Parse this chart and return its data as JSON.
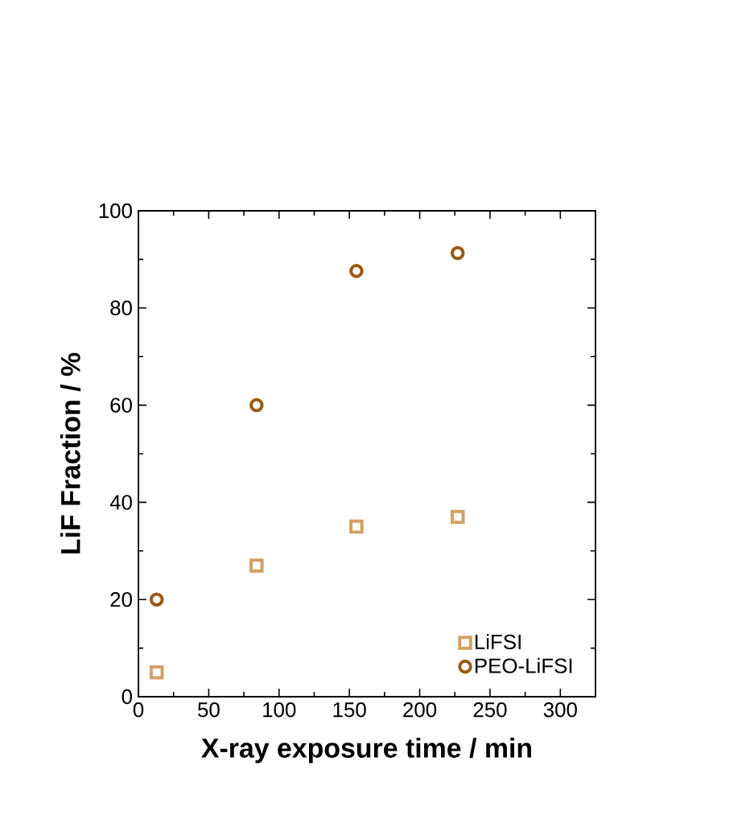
{
  "chart_data": {
    "type": "scatter",
    "xlabel": "X-ray exposure time / min",
    "ylabel": "LiF Fraction / %",
    "xlim": [
      0,
      325
    ],
    "ylim": [
      0,
      100
    ],
    "xticks": [
      0,
      50,
      100,
      150,
      200,
      250,
      300
    ],
    "yticks": [
      0,
      20,
      40,
      60,
      80,
      100
    ],
    "grid": false,
    "legend": "bottom right",
    "series": [
      {
        "name": "LiFSI",
        "color": "#d4a064",
        "marker": "square",
        "x": [
          13,
          84,
          155,
          227
        ],
        "values": [
          5,
          27,
          35,
          37
        ]
      },
      {
        "name": "PEO-LiFSI",
        "color": "#9a5a12",
        "marker": "circle",
        "x": [
          13,
          84,
          155,
          227
        ],
        "values": [
          20,
          60,
          87.6,
          91.3
        ]
      }
    ]
  }
}
